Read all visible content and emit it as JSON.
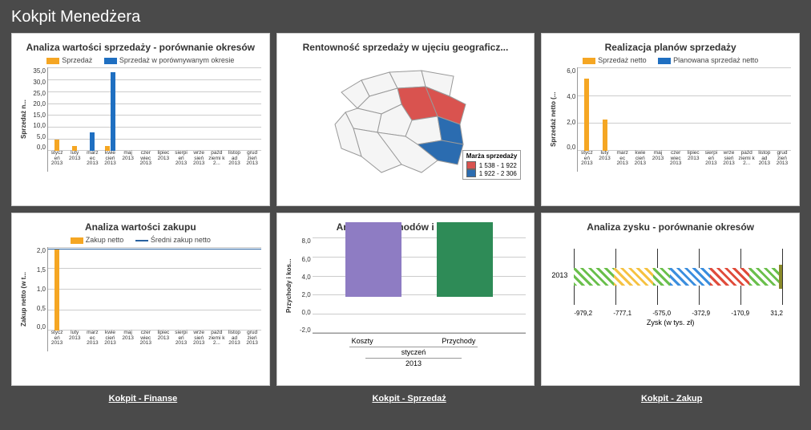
{
  "page_title": "Kokpit Menedżera",
  "colors": {
    "yellow": "#f5a623",
    "blue": "#1f6fc1",
    "red_map": "#d9534f",
    "blue_map": "#2b6cb0",
    "purple": "#8e7cc3",
    "green": "#2e8b57",
    "grid": "#cccccc"
  },
  "footer_links": [
    "Kokpit - Finanse",
    "Kokpit - Sprzedaż",
    "Kokpit - Zakup"
  ],
  "months": [
    "stycz eń 2013",
    "luty 2013",
    "marz ec 2013",
    "kwie cień 2013",
    "maj 2013",
    "czer wiec 2013",
    "lipiec 2013",
    "sierpi eń 2013",
    "wrze sień 2013",
    "pażd ziemi k 2...",
    "listop ad 2013",
    "grud zień 2013"
  ],
  "chart1": {
    "title": "Analiza wartości sprzedaży - porównanie okresów",
    "legend": [
      {
        "label": "Sprzedaż",
        "color": "#f5a623"
      },
      {
        "label": "Sprzedaż w porównywanym okresie",
        "color": "#1f6fc1"
      }
    ],
    "y_label": "Sprzedaż n...",
    "y_ticks": [
      "35,0",
      "30,0",
      "25,0",
      "20,0",
      "15,0",
      "10,0",
      "5,0",
      "0,0"
    ],
    "y_max": 35,
    "series1": [
      5,
      2,
      0,
      2,
      0,
      0,
      0,
      0,
      0,
      0,
      0,
      0
    ],
    "series2": [
      0,
      0,
      8,
      33,
      0,
      0,
      0,
      0,
      0,
      0,
      0,
      0
    ]
  },
  "chart2": {
    "title": "Rentowność sprzedaży w ujęciu geograficz...",
    "legend_title": "Marża sprzedaży",
    "ranges": [
      {
        "label": "1 538 - 1 922",
        "color": "#d9534f"
      },
      {
        "label": "1 922 - 2 306",
        "color": "#2b6cb0"
      }
    ]
  },
  "chart3": {
    "title": "Realizacja planów sprzedaży",
    "legend": [
      {
        "label": "Sprzedaż netto",
        "color": "#f5a623"
      },
      {
        "label": "Planowana sprzedaż netto",
        "color": "#1f6fc1"
      }
    ],
    "y_label": "Sprzedaż netto (...",
    "y_ticks": [
      "6,0",
      "4,0",
      "2,0",
      "0,0"
    ],
    "y_max": 6,
    "series1": [
      5.2,
      2.3,
      0,
      0,
      0,
      0,
      0,
      0,
      0,
      0,
      0,
      0
    ],
    "series2": [
      0,
      0,
      0,
      0,
      0,
      0,
      0,
      0,
      0,
      0,
      0,
      0
    ]
  },
  "chart4": {
    "title": "Analiza wartości zakupu",
    "legend": [
      {
        "label": "Zakup netto",
        "color": "#f5a623",
        "type": "bar"
      },
      {
        "label": "Średni zakup netto",
        "color": "#2962a0",
        "type": "line"
      }
    ],
    "y_label": "Zakup netto (w t...",
    "y_ticks": [
      "2,0",
      "1,5",
      "1,0",
      "0,5",
      "0,0"
    ],
    "y_max": 2,
    "avg_line": 1.95,
    "series1": [
      1.95,
      0,
      0,
      0,
      0,
      0,
      0,
      0,
      0,
      0,
      0,
      0
    ]
  },
  "chart5": {
    "title": "Analiza przychodów i kosztów",
    "y_label": "Przychody i kos...",
    "y_ticks": [
      "8,0",
      "6,0",
      "4,0",
      "2,0",
      "0,0",
      "-2,0"
    ],
    "y_min": -2,
    "y_max": 8,
    "bars": [
      {
        "label": "Koszty",
        "value": 7.8,
        "color": "#8e7cc3"
      },
      {
        "label": "Przychody",
        "value": 7.8,
        "color": "#2e8b57"
      }
    ],
    "sub1": "styczeń",
    "sub2": "2013"
  },
  "chart6": {
    "title": "Analiza zysku - porównanie okresów",
    "y_label": "2013",
    "x_ticks": [
      "-979,2",
      "-777,1",
      "-575,0",
      "-372,9",
      "-170,9",
      "31,2"
    ],
    "x_title": "Zysk (w tys. zł)",
    "segments": [
      {
        "color": "#6abf4b",
        "w": 19
      },
      {
        "color": "#f5c242",
        "w": 19
      },
      {
        "color": "#6abf4b",
        "w": 8
      },
      {
        "color": "#3b8ede",
        "w": 19
      },
      {
        "color": "#e04b3a",
        "w": 19
      },
      {
        "color": "#6abf4b",
        "w": 14
      }
    ],
    "end_marker_color": "#8a8a2a"
  }
}
